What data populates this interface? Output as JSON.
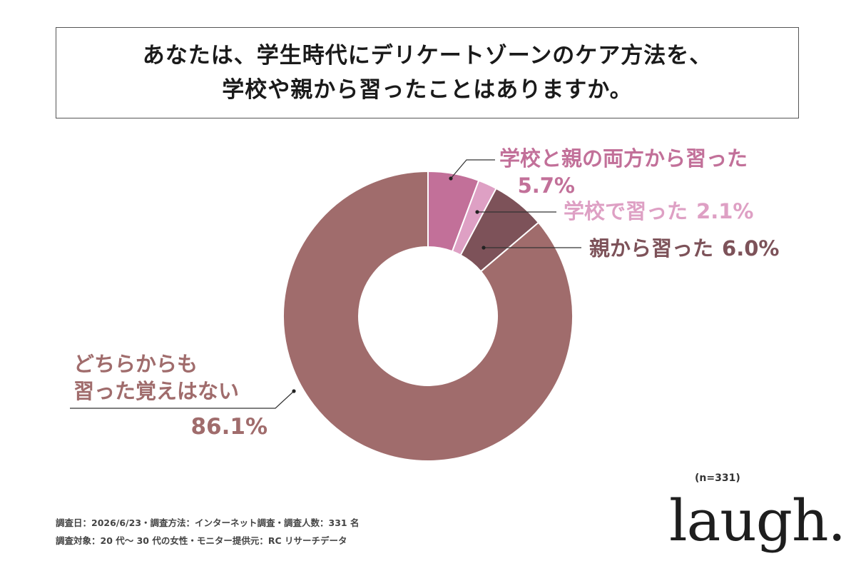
{
  "title": {
    "line1": "あなたは、学生時代にデリケートゾーンのケア方法を、",
    "line2": "学校や親から習ったことはありますか。"
  },
  "chart_data": {
    "type": "pie",
    "donut": true,
    "categories": [
      "学校と親の両方から習った",
      "学校で習った",
      "親から習った",
      "どちらからも習った覚えはない"
    ],
    "values": [
      5.7,
      2.1,
      6.0,
      86.1
    ],
    "value_labels": [
      "5.7%",
      "2.1%",
      "6.0%",
      "86.1%"
    ],
    "colors": [
      "#c27099",
      "#dea0c4",
      "#7d5259",
      "#a06c6c"
    ],
    "n": "(n=331)"
  },
  "labels": {
    "both": {
      "name": "学校と親の両方から習った",
      "value": "5.7%"
    },
    "school": {
      "name": "学校で習った",
      "value": "2.1%"
    },
    "parent": {
      "name": "親から習った",
      "value": "6.0%"
    },
    "none": {
      "line1": "どちらからも",
      "line2": "習った覚えはない",
      "value": "86.1%"
    }
  },
  "notes": {
    "line1": "調査日：2026/6/23・調査方法：インターネット調査・調査人数：331 名",
    "line2": "調査対象：20 代〜 30 代の女性・モニター提供元：RC リサーチデータ"
  },
  "logo": "laugh."
}
